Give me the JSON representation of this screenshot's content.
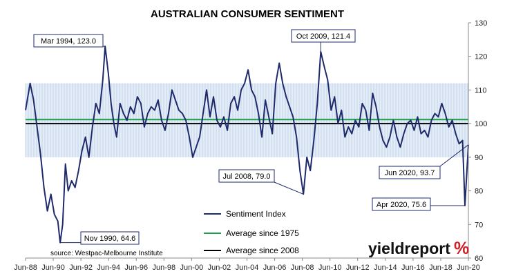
{
  "chart_data": {
    "type": "line",
    "title": "AUSTRALIAN CONSUMER SENTIMENT",
    "ylim": [
      60,
      130
    ],
    "y_ticks": [
      60,
      70,
      80,
      90,
      100,
      110,
      120,
      130
    ],
    "x_tick_labels": [
      "Jun-88",
      "Jun-90",
      "Jun-92",
      "Jun-94",
      "Jun-96",
      "Jun-98",
      "Jun-00",
      "Jun-02",
      "Jun-04",
      "Jun-06",
      "Jun-08",
      "Jun-10",
      "Jun-12",
      "Jun-14",
      "Jun-16",
      "Jun-18",
      "Jun-20"
    ],
    "x_range": [
      1988.42,
      2020.42
    ],
    "band": [
      90,
      112
    ],
    "series": [
      {
        "name": "Sentiment Index",
        "color": "#1f2a6b",
        "points": [
          [
            1988.42,
            104
          ],
          [
            1988.75,
            112
          ],
          [
            1989.0,
            107
          ],
          [
            1989.25,
            99
          ],
          [
            1989.5,
            91
          ],
          [
            1989.75,
            81
          ],
          [
            1990.0,
            74
          ],
          [
            1990.25,
            79
          ],
          [
            1990.5,
            73
          ],
          [
            1990.75,
            71
          ],
          [
            1990.92,
            64.6
          ],
          [
            1991.1,
            70
          ],
          [
            1991.3,
            88
          ],
          [
            1991.5,
            80
          ],
          [
            1991.75,
            83
          ],
          [
            1992.0,
            81
          ],
          [
            1992.25,
            86
          ],
          [
            1992.5,
            92
          ],
          [
            1992.75,
            96
          ],
          [
            1993.0,
            90
          ],
          [
            1993.25,
            99
          ],
          [
            1993.5,
            106
          ],
          [
            1993.75,
            103
          ],
          [
            1994.0,
            113
          ],
          [
            1994.17,
            123.0
          ],
          [
            1994.4,
            115
          ],
          [
            1994.6,
            106
          ],
          [
            1994.8,
            100
          ],
          [
            1995.0,
            96
          ],
          [
            1995.25,
            106
          ],
          [
            1995.5,
            103
          ],
          [
            1995.75,
            101
          ],
          [
            1996.0,
            105
          ],
          [
            1996.25,
            103
          ],
          [
            1996.5,
            108
          ],
          [
            1996.75,
            106
          ],
          [
            1997.0,
            99
          ],
          [
            1997.25,
            103
          ],
          [
            1997.5,
            105
          ],
          [
            1997.75,
            104
          ],
          [
            1998.0,
            107
          ],
          [
            1998.25,
            101
          ],
          [
            1998.5,
            98
          ],
          [
            1998.75,
            103
          ],
          [
            1999.0,
            110
          ],
          [
            1999.25,
            107
          ],
          [
            1999.5,
            104
          ],
          [
            1999.75,
            103
          ],
          [
            2000.0,
            101
          ],
          [
            2000.25,
            96
          ],
          [
            2000.5,
            90
          ],
          [
            2000.75,
            93
          ],
          [
            2001.0,
            96
          ],
          [
            2001.25,
            103
          ],
          [
            2001.5,
            110
          ],
          [
            2001.75,
            102
          ],
          [
            2002.0,
            108
          ],
          [
            2002.25,
            101
          ],
          [
            2002.5,
            99
          ],
          [
            2002.75,
            102
          ],
          [
            2003.0,
            98
          ],
          [
            2003.25,
            106
          ],
          [
            2003.5,
            108
          ],
          [
            2003.75,
            104
          ],
          [
            2004.0,
            110
          ],
          [
            2004.25,
            112
          ],
          [
            2004.5,
            116
          ],
          [
            2004.75,
            110
          ],
          [
            2005.0,
            108
          ],
          [
            2005.25,
            103
          ],
          [
            2005.5,
            96
          ],
          [
            2005.75,
            107
          ],
          [
            2006.0,
            102
          ],
          [
            2006.25,
            97
          ],
          [
            2006.5,
            112
          ],
          [
            2006.75,
            118
          ],
          [
            2007.0,
            112
          ],
          [
            2007.25,
            108
          ],
          [
            2007.5,
            105
          ],
          [
            2007.75,
            102
          ],
          [
            2008.0,
            96
          ],
          [
            2008.25,
            86
          ],
          [
            2008.5,
            79.0
          ],
          [
            2008.75,
            90
          ],
          [
            2009.0,
            86
          ],
          [
            2009.25,
            95
          ],
          [
            2009.5,
            106
          ],
          [
            2009.75,
            121.4
          ],
          [
            2010.0,
            117
          ],
          [
            2010.25,
            113
          ],
          [
            2010.5,
            104
          ],
          [
            2010.75,
            108
          ],
          [
            2011.0,
            100
          ],
          [
            2011.25,
            104
          ],
          [
            2011.5,
            96
          ],
          [
            2011.75,
            99
          ],
          [
            2012.0,
            97
          ],
          [
            2012.25,
            101
          ],
          [
            2012.5,
            99
          ],
          [
            2012.75,
            106
          ],
          [
            2013.0,
            104
          ],
          [
            2013.25,
            98
          ],
          [
            2013.5,
            109
          ],
          [
            2013.75,
            105
          ],
          [
            2014.0,
            99
          ],
          [
            2014.25,
            95
          ],
          [
            2014.5,
            93
          ],
          [
            2014.75,
            96
          ],
          [
            2015.0,
            101
          ],
          [
            2015.25,
            96
          ],
          [
            2015.5,
            93
          ],
          [
            2015.75,
            97
          ],
          [
            2016.0,
            100
          ],
          [
            2016.25,
            101
          ],
          [
            2016.5,
            98
          ],
          [
            2016.75,
            102
          ],
          [
            2017.0,
            97
          ],
          [
            2017.25,
            98
          ],
          [
            2017.5,
            96
          ],
          [
            2017.75,
            101
          ],
          [
            2018.0,
            103
          ],
          [
            2018.25,
            102
          ],
          [
            2018.5,
            106
          ],
          [
            2018.75,
            103
          ],
          [
            2019.0,
            99
          ],
          [
            2019.25,
            101
          ],
          [
            2019.5,
            97
          ],
          [
            2019.75,
            94
          ],
          [
            2020.0,
            95
          ],
          [
            2020.17,
            75.6
          ],
          [
            2020.42,
            93.7
          ]
        ]
      },
      {
        "name": "Average since 1975",
        "color": "#1aa34a",
        "value": 101.2
      },
      {
        "name": "Average since 2008",
        "color": "#000000",
        "value": 100.0
      }
    ],
    "annotations": [
      {
        "label": "Mar 1994, 123.0",
        "x": 1994.17,
        "y": 123.0
      },
      {
        "label": "Oct 2009, 121.4",
        "x": 2009.75,
        "y": 121.4
      },
      {
        "label": "Jul 2008, 79.0",
        "x": 2008.5,
        "y": 79.0
      },
      {
        "label": "Nov 1990, 64.6",
        "x": 1990.92,
        "y": 64.6
      },
      {
        "label": "Jun 2020, 93.7",
        "x": 2020.42,
        "y": 93.7
      },
      {
        "label": "Apr 2020, 75.6",
        "x": 2020.17,
        "y": 75.6
      }
    ],
    "source": "source: Westpac-Melbourne Institute",
    "logo": {
      "main": "yieldreport",
      "symbol": "%"
    }
  }
}
